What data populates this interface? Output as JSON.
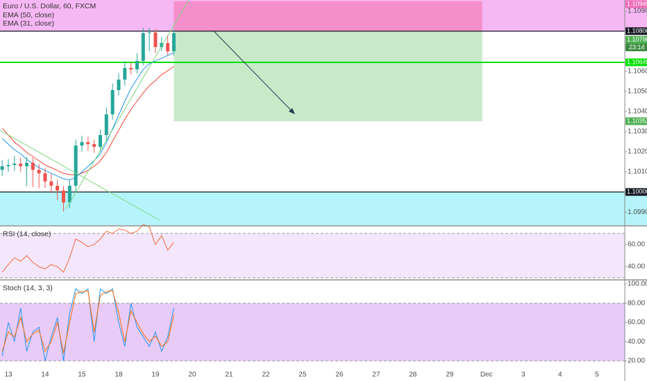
{
  "chart_data": [
    {
      "type": "candlestick",
      "title": "Euro / U.S. Dollar, 60, FXCM",
      "open": [
        1.1011,
        1.10128,
        1.10134,
        1.10141,
        1.10128,
        1.10145,
        1.1011,
        1.10093,
        1.10052,
        1.10031,
        1.10007,
        1.09948,
        1.10031,
        1.10231,
        1.10248,
        1.10238,
        1.10224,
        1.10283,
        1.10386,
        1.10507,
        1.10559,
        1.10617,
        1.1061,
        1.10652,
        1.1079,
        1.10793,
        1.10721,
        1.10741,
        1.107
      ],
      "high": [
        1.10158,
        1.10164,
        1.1018,
        1.10171,
        1.10175,
        1.1017,
        1.1014,
        1.1012,
        1.1009,
        1.1006,
        1.1003,
        1.1006,
        1.1026,
        1.1028,
        1.10275,
        1.1026,
        1.1031,
        1.1042,
        1.1054,
        1.1059,
        1.1065,
        1.10645,
        1.1069,
        1.10817,
        1.10817,
        1.1081,
        1.1077,
        1.1078,
        1.1081
      ],
      "low": [
        1.1008,
        1.101,
        1.10105,
        1.101,
        1.1003,
        1.10025,
        1.1002,
        1.1002,
        1.09995,
        1.0996,
        1.09903,
        1.0992,
        1.1,
        1.102,
        1.10205,
        1.10195,
        1.102,
        1.1026,
        1.1036,
        1.1048,
        1.1053,
        1.10585,
        1.1059,
        1.1063,
        1.107,
        1.1069,
        1.107,
        1.1068,
        1.1068
      ],
      "close": [
        1.10128,
        1.10134,
        1.10141,
        1.10128,
        1.10145,
        1.1011,
        1.10093,
        1.10052,
        1.10031,
        1.10007,
        1.09948,
        1.10031,
        1.10231,
        1.10248,
        1.10238,
        1.10224,
        1.10283,
        1.10386,
        1.10507,
        1.10559,
        1.10617,
        1.1061,
        1.10652,
        1.1079,
        1.10793,
        1.10721,
        1.10741,
        1.107,
        1.1079
      ],
      "up_color": "#26a69a",
      "down_color": "#ef5350",
      "series": [
        {
          "name": "EMA (50, close)",
          "color": "#f44336",
          "values": [
            1.10317,
            1.10283,
            1.10248,
            1.10224,
            1.10197,
            1.10176,
            1.10155,
            1.10134,
            1.10121,
            1.10107,
            1.10093,
            1.10086,
            1.10086,
            1.10093,
            1.10107,
            1.10128,
            1.10155,
            1.10197,
            1.10252,
            1.10307,
            1.10362,
            1.1041,
            1.10452,
            1.10493,
            1.10528,
            1.10555,
            1.10583,
            1.10603,
            1.10624
          ]
        },
        {
          "name": "EMA (31, close)",
          "color": "#2196f3",
          "values": [
            1.10266,
            1.10238,
            1.1021,
            1.1019,
            1.10162,
            1.10141,
            1.10121,
            1.10107,
            1.10093,
            1.10079,
            1.10066,
            1.10059,
            1.10072,
            1.101,
            1.10128,
            1.10155,
            1.1019,
            1.10245,
            1.10314,
            1.10383,
            1.10452,
            1.10514,
            1.10562,
            1.1061,
            1.10638,
            1.10652,
            1.10666,
            1.10679,
            1.10693
          ]
        }
      ],
      "xlim": [
        -0.36,
        101.56
      ],
      "xticks": [
        {
          "value": 1,
          "label": "13"
        },
        {
          "value": 7,
          "label": "14"
        },
        {
          "value": 13,
          "label": "15"
        },
        {
          "value": 19,
          "label": "18"
        },
        {
          "value": 25,
          "label": "19"
        },
        {
          "value": 31,
          "label": "20"
        },
        {
          "value": 37,
          "label": "21"
        },
        {
          "value": 43,
          "label": "22"
        },
        {
          "value": 49,
          "label": "25"
        },
        {
          "value": 55,
          "label": "26"
        },
        {
          "value": 61,
          "label": "27"
        },
        {
          "value": 67,
          "label": "28"
        },
        {
          "value": 73,
          "label": "29"
        },
        {
          "value": 79,
          "label": "Dec"
        },
        {
          "value": 85,
          "label": "3"
        },
        {
          "value": 91,
          "label": "4"
        },
        {
          "value": 97,
          "label": "5"
        }
      ],
      "ylim": [
        1.09835,
        1.10955
      ],
      "yticks": [
        {
          "value": 1.099,
          "label": "1.09900"
        },
        {
          "value": 1.101,
          "label": "1.10100"
        },
        {
          "value": 1.102,
          "label": "1.10200"
        },
        {
          "value": 1.103,
          "label": "1.10300"
        },
        {
          "value": 1.104,
          "label": "1.10400"
        },
        {
          "value": 1.105,
          "label": "1.10500"
        },
        {
          "value": 1.106,
          "label": "1.10600"
        },
        {
          "value": 1.109,
          "label": "1.10900"
        }
      ],
      "levels": [
        {
          "value": 1.10949,
          "label": "1.10949",
          "color": "#f06bb8",
          "line": false
        },
        {
          "value": 1.108,
          "label": "1.10800",
          "color": "#131722",
          "line": true
        },
        {
          "value": 1.1079,
          "label": "1.10790",
          "color": "#4caf50",
          "line": false
        },
        {
          "value": 1.10645,
          "label": "1.10645",
          "color": "#00e000",
          "line": true
        },
        {
          "value": 1.10352,
          "label": "1.10352",
          "color": "#4caf50",
          "line": false
        },
        {
          "value": 1.1,
          "label": "1.10000",
          "color": "#131722",
          "line": true
        }
      ],
      "countdown": "23:14",
      "position": {
        "from": 28,
        "to": 78.3
      }
    },
    {
      "type": "line",
      "title": "RSI (14, close)",
      "color": "#ef6c3a",
      "values": [
        35,
        42,
        48,
        45,
        50,
        44,
        40,
        38,
        42,
        40,
        35,
        48,
        65,
        62,
        58,
        60,
        65,
        72,
        70,
        74,
        73,
        70,
        72,
        78,
        76,
        60,
        68,
        55,
        62
      ],
      "ylim": [
        28.75,
        76.25
      ],
      "yticks": [
        {
          "value": 40,
          "label": "40.00"
        },
        {
          "value": 60,
          "label": "60.00"
        }
      ],
      "bands": [
        30,
        70
      ],
      "band_color": "#f4e6fb"
    },
    {
      "type": "line",
      "title": "Stoch (14, 3, 3)",
      "series": [
        {
          "color": "#2196f3",
          "values": [
            25,
            60,
            40,
            75,
            30,
            50,
            55,
            20,
            45,
            65,
            20,
            70,
            95,
            90,
            95,
            40,
            95,
            90,
            95,
            60,
            35,
            80,
            55,
            45,
            35,
            50,
            30,
            45,
            75
          ]
        },
        {
          "color": "#ff6d00",
          "values": [
            30,
            50,
            45,
            65,
            40,
            48,
            52,
            30,
            40,
            60,
            28,
            60,
            90,
            92,
            93,
            50,
            88,
            92,
            93,
            70,
            40,
            72,
            60,
            48,
            40,
            46,
            35,
            40,
            68
          ]
        }
      ],
      "ylim": [
        0.5,
        103.6
      ],
      "yticks": [
        {
          "value": 20,
          "label": "20.00"
        },
        {
          "value": 40,
          "label": "40.00"
        },
        {
          "value": 60,
          "label": "60.00"
        },
        {
          "value": 80,
          "label": "80.00"
        },
        {
          "value": 100,
          "label": "100.00"
        }
      ],
      "bands": [
        20,
        80
      ],
      "band_color": "#e8cbf7"
    }
  ]
}
